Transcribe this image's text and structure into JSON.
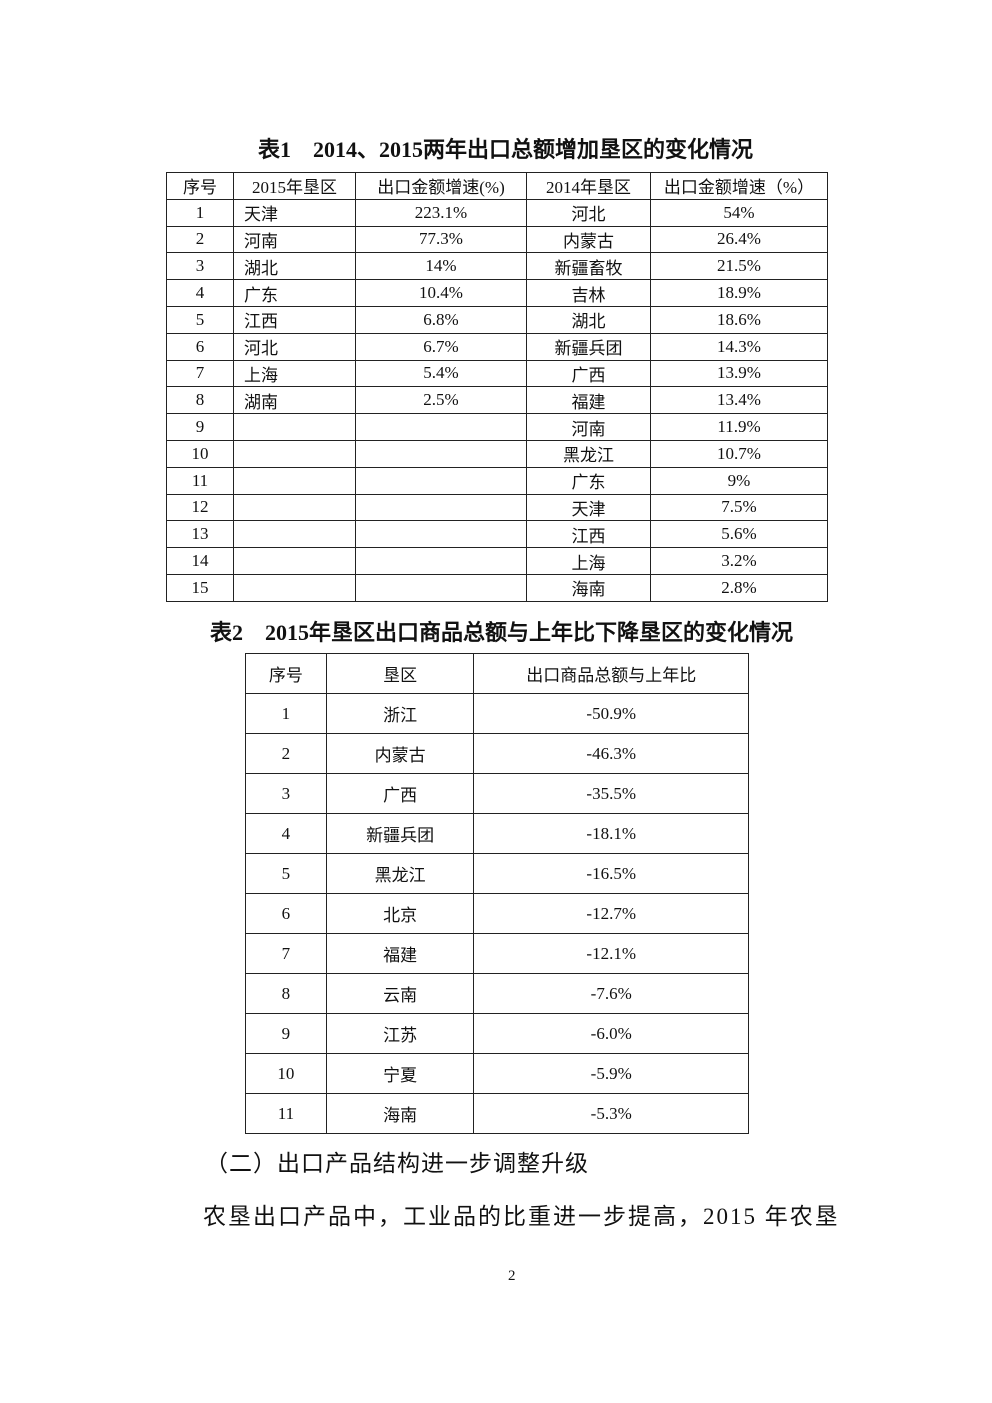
{
  "table1": {
    "title": "表1　2014、2015两年出口总额增加垦区的变化情况",
    "headers": [
      "序号",
      "2015年垦区",
      "出口金额增速(%)",
      "2014年垦区",
      "出口金额增速（%）"
    ],
    "rows": [
      [
        "1",
        "天津",
        "223.1%",
        "河北",
        "54%"
      ],
      [
        "2",
        "河南",
        "77.3%",
        "内蒙古",
        "26.4%"
      ],
      [
        "3",
        "湖北",
        "14%",
        "新疆畜牧",
        "21.5%"
      ],
      [
        "4",
        "广东",
        "10.4%",
        "吉林",
        "18.9%"
      ],
      [
        "5",
        "江西",
        "6.8%",
        "湖北",
        "18.6%"
      ],
      [
        "6",
        "河北",
        "6.7%",
        "新疆兵团",
        "14.3%"
      ],
      [
        "7",
        "上海",
        "5.4%",
        "广西",
        "13.9%"
      ],
      [
        "8",
        "湖南",
        "2.5%",
        "福建",
        "13.4%"
      ],
      [
        "9",
        "",
        "",
        "河南",
        "11.9%"
      ],
      [
        "10",
        "",
        "",
        "黑龙江",
        "10.7%"
      ],
      [
        "11",
        "",
        "",
        "广东",
        "9%"
      ],
      [
        "12",
        "",
        "",
        "天津",
        "7.5%"
      ],
      [
        "13",
        "",
        "",
        "江西",
        "5.6%"
      ],
      [
        "14",
        "",
        "",
        "上海",
        "3.2%"
      ],
      [
        "15",
        "",
        "",
        "海南",
        "2.8%"
      ]
    ]
  },
  "table2": {
    "title": "表2　2015年垦区出口商品总额与上年比下降垦区的变化情况",
    "headers": [
      "序号",
      "垦区",
      "出口商品总额与上年比"
    ],
    "rows": [
      [
        "1",
        "浙江",
        "-50.9%"
      ],
      [
        "2",
        "内蒙古",
        "-46.3%"
      ],
      [
        "3",
        "广西",
        "-35.5%"
      ],
      [
        "4",
        "新疆兵团",
        "-18.1%"
      ],
      [
        "5",
        "黑龙江",
        "-16.5%"
      ],
      [
        "6",
        "北京",
        "-12.7%"
      ],
      [
        "7",
        "福建",
        "-12.1%"
      ],
      [
        "8",
        "云南",
        "-7.6%"
      ],
      [
        "9",
        "江苏",
        "-6.0%"
      ],
      [
        "10",
        "宁夏",
        "-5.9%"
      ],
      [
        "11",
        "海南",
        "-5.3%"
      ]
    ]
  },
  "section_heading": "（二）出口产品结构进一步调整升级",
  "paragraph": "农垦出口产品中，工业品的比重进一步提高，2015 年农垦",
  "page_number": "2"
}
